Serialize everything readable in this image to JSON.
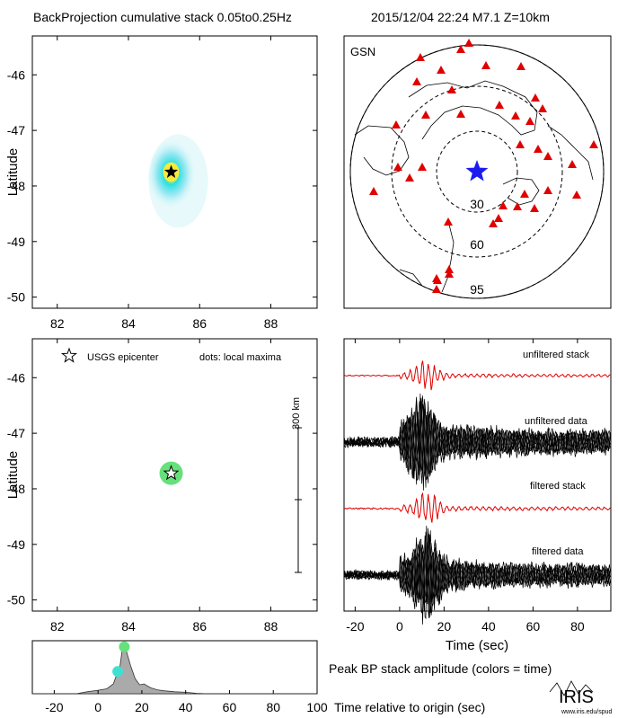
{
  "header": {
    "title": "BackProjection cumulative stack 0.05to0.25Hz",
    "event": "2015/12/04 22:24  M7.1  Z=10km"
  },
  "chart_data": [
    {
      "type": "heatmap",
      "panel": "beam",
      "xlabel": "",
      "ylabel": "Latitude",
      "xlim": [
        81.3,
        89.3
      ],
      "ylim": [
        -50.2,
        -45.3
      ],
      "xticks": [
        82,
        84,
        86,
        88
      ],
      "yticks": [
        -46,
        -47,
        -48,
        -49,
        -50
      ],
      "epicenter": {
        "lon": 85.2,
        "lat": -47.75
      },
      "peak": {
        "lon": 85.2,
        "lat": -47.75
      }
    },
    {
      "type": "scatter",
      "panel": "station_map",
      "network": "GSN",
      "rings": [
        "30",
        "60",
        "95"
      ],
      "stations_marker": "red-triangle",
      "epicenter_marker": "blue-star"
    },
    {
      "type": "scatter",
      "panel": "local_maxima",
      "legend_star": "USGS epicenter",
      "legend_dots": "dots: local maxima",
      "ylabel": "Latitude",
      "xlim": [
        81.3,
        89.3
      ],
      "ylim": [
        -50.2,
        -45.3
      ],
      "xticks": [
        82,
        84,
        86,
        88
      ],
      "yticks": [
        -46,
        -47,
        -48,
        -49,
        -50
      ],
      "scale_bar": "300 km",
      "epicenter": {
        "lon": 85.2,
        "lat": -47.72
      },
      "maxima": [
        {
          "lon": 85.2,
          "lat": -47.72,
          "color": "#66e07a"
        }
      ]
    },
    {
      "type": "line",
      "panel": "seismograms",
      "xlabel": "Time (sec)",
      "xlim": [
        -25,
        95
      ],
      "xticks": [
        -20,
        0,
        20,
        40,
        60,
        80
      ],
      "traces": [
        "unfiltered stack",
        "unfiltered data",
        "filtered stack",
        "filtered data"
      ]
    },
    {
      "type": "area",
      "panel": "peak_amplitude",
      "title": "Peak BP stack amplitude (colors = time)",
      "xlabel": "Time relative to origin (sec)",
      "xlim": [
        -30,
        100
      ],
      "xticks": [
        -20,
        0,
        20,
        40,
        60,
        80,
        100
      ],
      "x": [
        -30,
        -10,
        -5,
        0,
        4,
        7,
        9,
        10,
        11,
        12,
        13,
        15,
        17,
        19,
        21,
        22,
        24,
        27,
        30,
        35,
        40,
        45,
        50,
        100
      ],
      "values": [
        0,
        0,
        0.04,
        0.07,
        0.1,
        0.2,
        0.45,
        0.55,
        0.88,
        0.95,
        0.85,
        0.55,
        0.3,
        0.18,
        0.2,
        0.17,
        0.12,
        0.08,
        0.06,
        0.04,
        0.03,
        0.01,
        0,
        0
      ],
      "markers": [
        {
          "t": 9,
          "color": "#40e0d0"
        },
        {
          "t": 12,
          "color": "#66e07a"
        }
      ]
    }
  ],
  "logo": {
    "text": "IRIS",
    "url": "www.iris.edu/spud"
  }
}
